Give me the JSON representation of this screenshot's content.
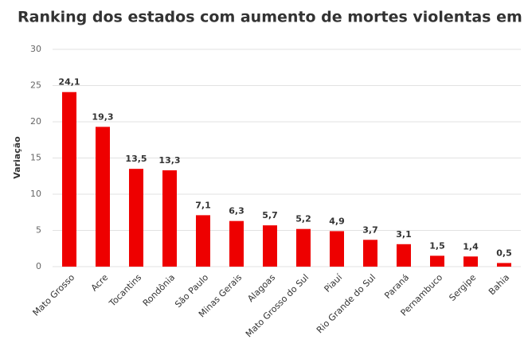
{
  "chart_data": {
    "type": "bar",
    "title": "Ranking dos estados com aumento de mortes violentas em um ano",
    "y_label": "Variação",
    "categories": [
      "Mato Grosso",
      "Acre",
      "Tocantins",
      "Rondônia",
      "São Paulo",
      "Minas Gerais",
      "Alagoas",
      "Mato Grosso do Sul",
      "Piauí",
      "Rio Grande do Sul",
      "Paraná",
      "Pernambuco",
      "Sergipe",
      "Bahia"
    ],
    "values": [
      24.1,
      19.3,
      13.5,
      13.3,
      7.1,
      6.3,
      5.7,
      5.2,
      4.9,
      3.7,
      3.1,
      1.5,
      1.4,
      0.5
    ],
    "value_labels": [
      "24,1",
      "19,3",
      "13,5",
      "13,3",
      "7,1",
      "6,3",
      "5,7",
      "5,2",
      "4,9",
      "3,7",
      "3,1",
      "1,5",
      "1,4",
      "0,5"
    ],
    "color": "#ee0000",
    "ylim": [
      0,
      30
    ],
    "yticks": [
      0,
      5,
      10,
      15,
      20,
      25,
      30
    ],
    "grid": true
  }
}
